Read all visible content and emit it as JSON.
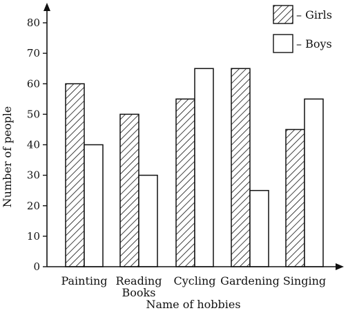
{
  "chart_data": {
    "type": "bar",
    "xlabel": "Name of hobbies",
    "ylabel": "Number of people",
    "ylim": [
      0,
      80
    ],
    "yticks": [
      0,
      10,
      20,
      30,
      40,
      50,
      60,
      70,
      80
    ],
    "categories": [
      [
        "Painting"
      ],
      [
        "Reading",
        "Books"
      ],
      [
        "Cycling"
      ],
      [
        "Gardening"
      ],
      [
        "Singing"
      ]
    ],
    "series": [
      {
        "name": "Girls",
        "pattern": "hatched",
        "values": [
          60,
          50,
          55,
          65,
          45
        ]
      },
      {
        "name": "Boys",
        "pattern": "plain",
        "values": [
          40,
          30,
          65,
          25,
          55
        ]
      }
    ],
    "legend": {
      "position": "top-right",
      "entries": [
        "– Girls",
        "– Boys"
      ]
    },
    "colors": {
      "ink": "#111111",
      "background": "#ffffff"
    }
  }
}
